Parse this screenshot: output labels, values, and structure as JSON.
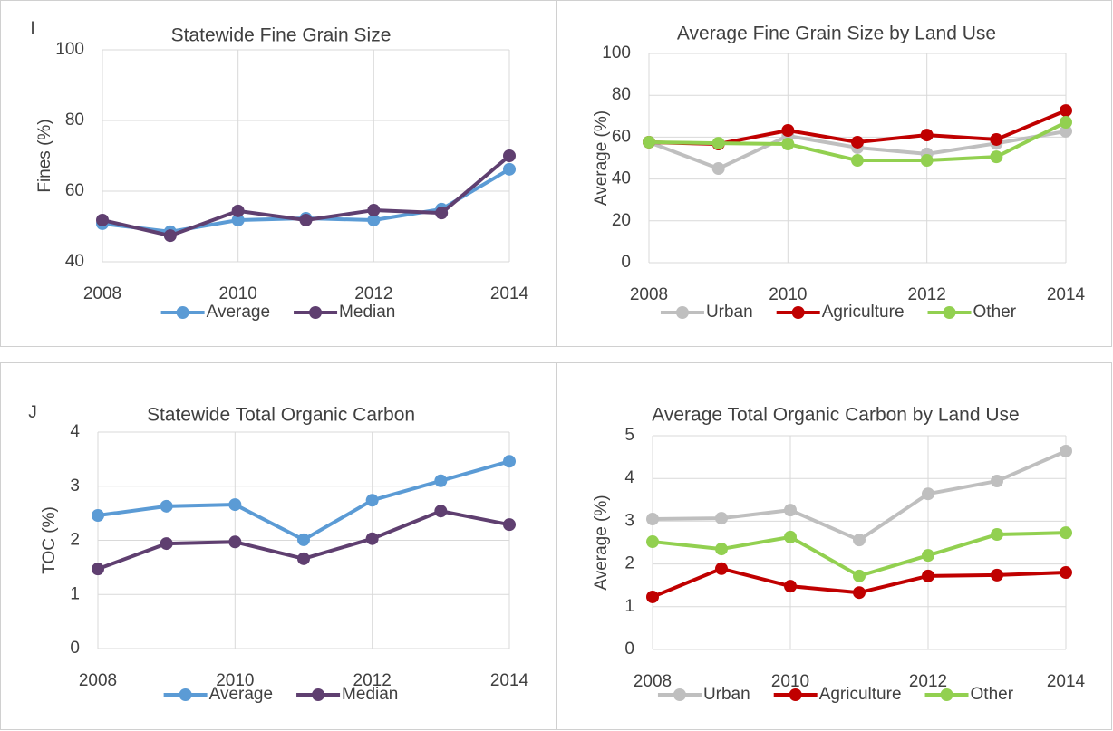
{
  "chart_data": [
    {
      "type": "line",
      "label": "I",
      "title": "Statewide Fine Grain Size",
      "ylabel": "Fines (%)",
      "x": [
        2008,
        2009,
        2010,
        2011,
        2012,
        2013,
        2014
      ],
      "xlim": [
        2008,
        2014
      ],
      "xticks": [
        2008,
        2010,
        2012,
        2014
      ],
      "ylim": [
        40,
        100
      ],
      "yticks": [
        40,
        60,
        80,
        100
      ],
      "grid": true,
      "series": [
        {
          "name": "Average",
          "color": "#5b9bd5",
          "values": [
            50.8,
            48.5,
            51.8,
            52.3,
            51.8,
            54.9,
            66.2
          ]
        },
        {
          "name": "Median",
          "color": "#5f3f70",
          "values": [
            51.8,
            47.4,
            54.4,
            51.8,
            54.6,
            53.8,
            70
          ]
        }
      ]
    },
    {
      "type": "line",
      "title": "Average Fine Grain Size by Land Use",
      "ylabel": "Average (%)",
      "x": [
        2008,
        2009,
        2010,
        2011,
        2012,
        2013,
        2014
      ],
      "xlim": [
        2008,
        2014
      ],
      "xticks": [
        2008,
        2010,
        2012,
        2014
      ],
      "ylim": [
        0,
        100
      ],
      "yticks": [
        0,
        20,
        40,
        60,
        80,
        100
      ],
      "grid": true,
      "series": [
        {
          "name": "Urban",
          "color": "#bfbfbf",
          "values": [
            57.6,
            45,
            60.6,
            55,
            52,
            57,
            62.8
          ]
        },
        {
          "name": "Agriculture",
          "color": "#c00000",
          "values": [
            57.6,
            56.7,
            63.2,
            57.6,
            61,
            58.9,
            72.7
          ]
        },
        {
          "name": "Other",
          "color": "#92d050",
          "values": [
            57.6,
            57.1,
            56.7,
            48.9,
            48.9,
            50.6,
            67.1
          ]
        }
      ]
    },
    {
      "type": "line",
      "label": "J",
      "title": "Statewide Total Organic Carbon",
      "ylabel": "TOC (%)",
      "x": [
        2008,
        2009,
        2010,
        2011,
        2012,
        2013,
        2014
      ],
      "xlim": [
        2008,
        2014
      ],
      "xticks": [
        2008,
        2010,
        2012,
        2014
      ],
      "ylim": [
        0,
        4
      ],
      "yticks": [
        0,
        1,
        2,
        3,
        4
      ],
      "grid": true,
      "series": [
        {
          "name": "Average",
          "color": "#5b9bd5",
          "values": [
            2.46,
            2.63,
            2.66,
            2.01,
            2.74,
            3.1,
            3.46
          ]
        },
        {
          "name": "Median",
          "color": "#5f3f70",
          "values": [
            1.47,
            1.94,
            1.97,
            1.66,
            2.03,
            2.54,
            2.29
          ]
        }
      ]
    },
    {
      "type": "line",
      "title": "Average Total Organic Carbon by Land Use",
      "ylabel": "Average (%)",
      "x": [
        2008,
        2009,
        2010,
        2011,
        2012,
        2013,
        2014
      ],
      "xlim": [
        2008,
        2014
      ],
      "xticks": [
        2008,
        2010,
        2012,
        2014
      ],
      "ylim": [
        0,
        5
      ],
      "yticks": [
        0,
        1,
        2,
        3,
        4,
        5
      ],
      "grid": true,
      "series": [
        {
          "name": "Urban",
          "color": "#bfbfbf",
          "values": [
            3.05,
            3.07,
            3.26,
            2.56,
            3.64,
            3.94,
            4.64
          ]
        },
        {
          "name": "Agriculture",
          "color": "#c00000",
          "values": [
            1.23,
            1.89,
            1.48,
            1.33,
            1.72,
            1.74,
            1.8
          ]
        },
        {
          "name": "Other",
          "color": "#92d050",
          "values": [
            2.52,
            2.35,
            2.63,
            1.72,
            2.2,
            2.69,
            2.73
          ]
        }
      ]
    }
  ]
}
